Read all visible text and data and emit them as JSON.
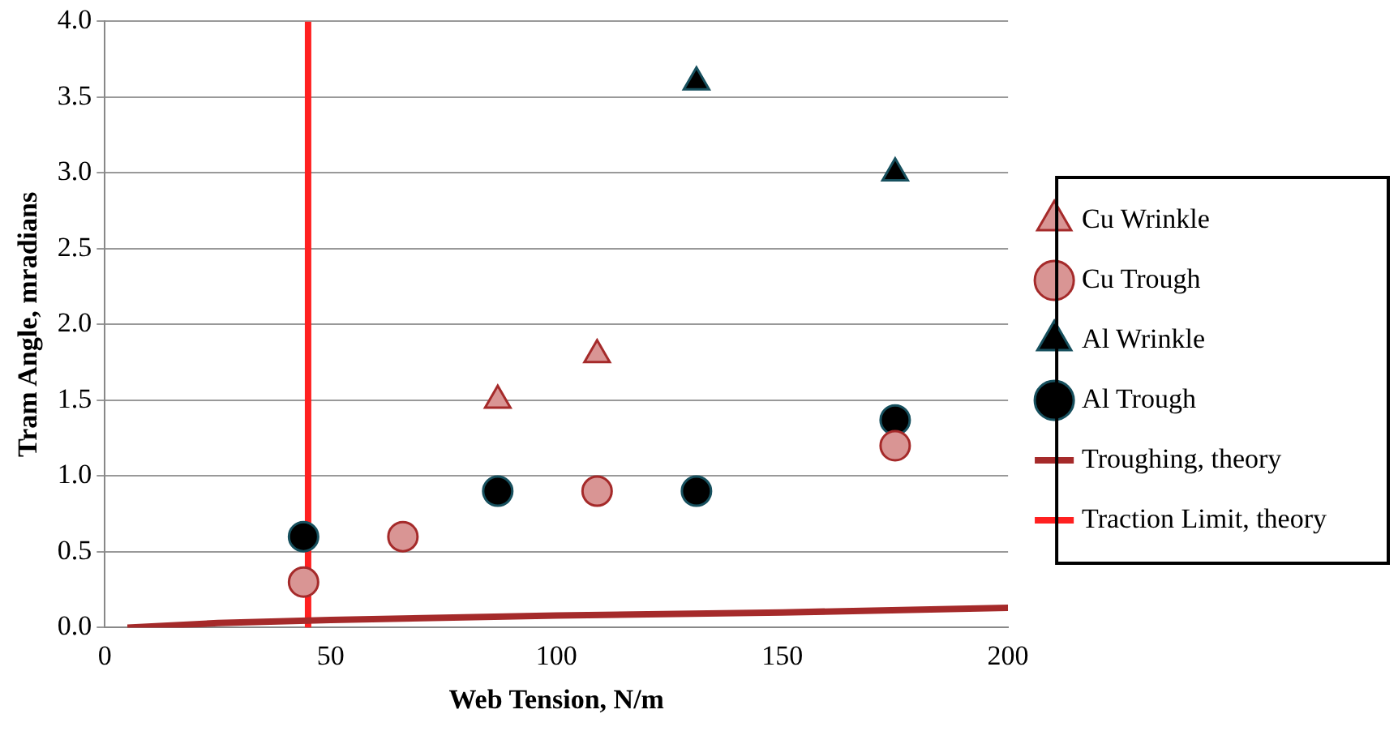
{
  "chart_data": {
    "type": "scatter",
    "xlabel": "Web Tension, N/m",
    "ylabel": "Tram Angle, mradians",
    "xlim": [
      0,
      200
    ],
    "xticks": [
      0,
      50,
      100,
      150,
      200
    ],
    "ylim": [
      0,
      4
    ],
    "yticks": [
      {
        "value": 0,
        "label": "0.0"
      },
      {
        "value": 0.5,
        "label": "0.5"
      },
      {
        "value": 1,
        "label": "1.0"
      },
      {
        "value": 1.5,
        "label": "1.5"
      },
      {
        "value": 2,
        "label": "2.0"
      },
      {
        "value": 2.5,
        "label": "2.5"
      },
      {
        "value": 3,
        "label": "3.0"
      },
      {
        "value": 3.5,
        "label": "3.5"
      },
      {
        "value": 4,
        "label": "4.0"
      }
    ],
    "grid": "y",
    "legend": "right",
    "series": [
      {
        "name": "Cu Wrinkle",
        "marker": "triangle",
        "color": "#d99594",
        "x": [
          87,
          109
        ],
        "values": [
          1.5,
          1.8
        ]
      },
      {
        "name": "Cu Trough",
        "marker": "circle",
        "color": "#d99594",
        "x": [
          44,
          66,
          109,
          175
        ],
        "values": [
          0.3,
          0.6,
          0.9,
          1.2
        ]
      },
      {
        "name": "Al Wrinkle",
        "marker": "triangle",
        "color": "#000000",
        "x": [
          131,
          175
        ],
        "values": [
          3.6,
          3.0
        ]
      },
      {
        "name": "Al Trough",
        "marker": "circle",
        "color": "#000000",
        "x": [
          44,
          87,
          131,
          175
        ],
        "values": [
          0.6,
          0.9,
          0.9,
          1.37
        ]
      },
      {
        "name": "Troughing, theory",
        "type": "line",
        "marker": "none",
        "color": "#a52a2a",
        "x": [
          5,
          25,
          50,
          100,
          150,
          200
        ],
        "values": [
          0,
          0.03,
          0.05,
          0.08,
          0.1,
          0.13
        ]
      },
      {
        "name": "Traction Limit, theory",
        "type": "line",
        "marker": "none",
        "color": "#ff2020",
        "x": [
          45,
          45
        ],
        "values": [
          0,
          4
        ]
      }
    ]
  }
}
